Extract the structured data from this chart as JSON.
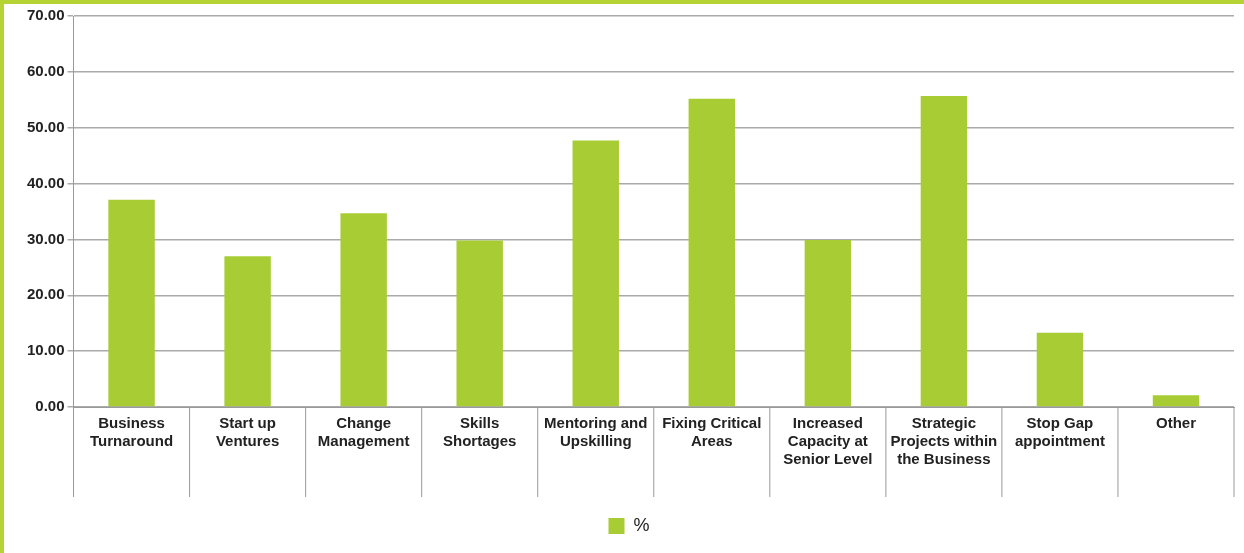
{
  "chart_data": {
    "type": "bar",
    "categories": [
      "Business Turnaround",
      "Start up Ventures",
      "Change Management",
      "Skills Shortages",
      "Mentoring and Upskilling",
      "Fixing Critical Areas",
      "Increased Capacity at Senior Level",
      "Strategic Projects within the Business",
      "Stop Gap appointment",
      "Other"
    ],
    "series": [
      {
        "name": "%",
        "color": "#a8cc34",
        "values": [
          37.1,
          27.0,
          34.7,
          29.8,
          47.7,
          55.2,
          29.9,
          55.7,
          13.3,
          2.1
        ]
      }
    ],
    "ylim": [
      0,
      70
    ],
    "yticks": [
      {
        "value": 0,
        "label": "0.00"
      },
      {
        "value": 10,
        "label": "10.00"
      },
      {
        "value": 20,
        "label": "20.00"
      },
      {
        "value": 30,
        "label": "30.00"
      },
      {
        "value": 40,
        "label": "40.00"
      },
      {
        "value": 50,
        "label": "50.00"
      },
      {
        "value": 60,
        "label": "60.00"
      },
      {
        "value": 70,
        "label": "70.00"
      }
    ],
    "grid": "y",
    "legend": "bottom"
  }
}
